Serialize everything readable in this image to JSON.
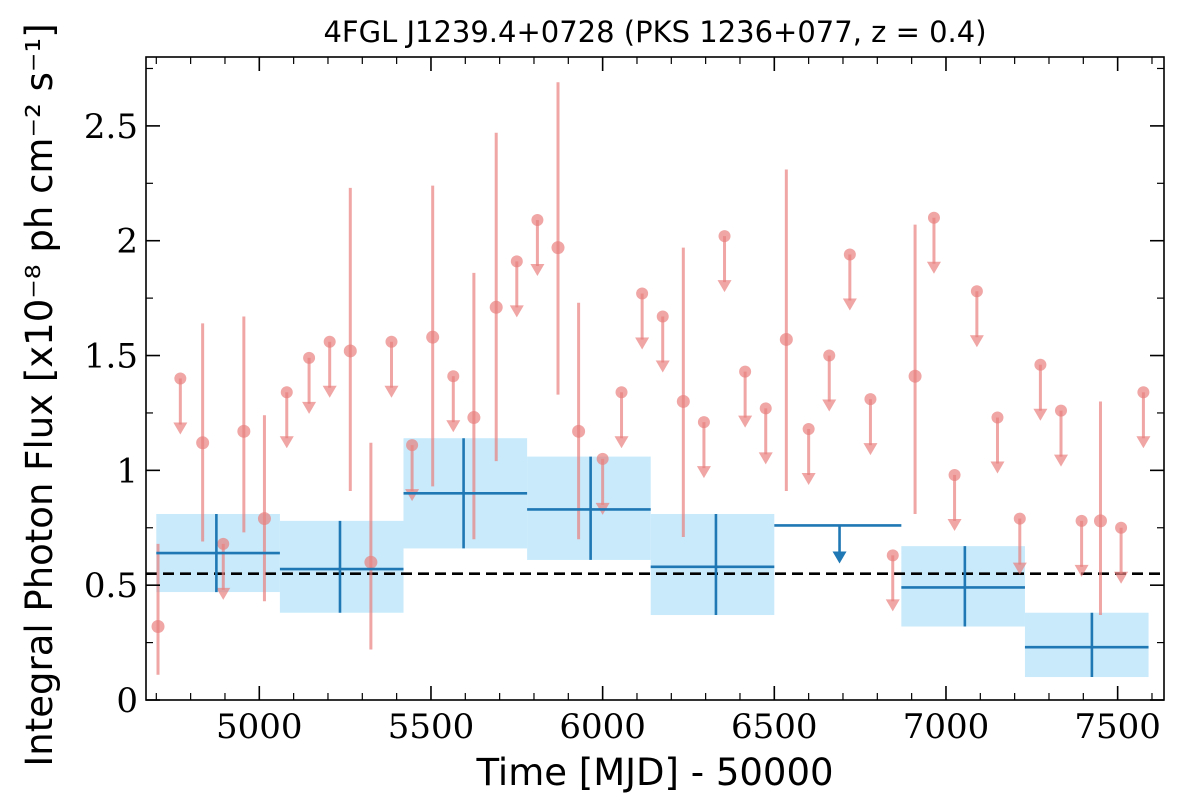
{
  "chart_data": {
    "type": "scatter",
    "title": "4FGL J1239.4+0728 (PKS 1236+077, z = 0.4)",
    "xlabel": "Time [MJD] - 50000",
    "ylabel": "Integral Photon Flux [x10⁻⁸ ph cm⁻² s⁻¹]",
    "xlim": [
      4670,
      7635
    ],
    "ylim": [
      0,
      2.8
    ],
    "xticks": [
      5000,
      5500,
      6000,
      6500,
      7000,
      7500
    ],
    "yticks": [
      0,
      0.5,
      1,
      1.5,
      2,
      2.5
    ],
    "xtick_labels": [
      "5000",
      "5500",
      "6000",
      "6500",
      "7000",
      "7500"
    ],
    "ytick_labels": [
      "0",
      "0.5",
      "1",
      "1.5",
      "2",
      "2.5"
    ],
    "reference_line": {
      "y": 0.55,
      "style": "dashed",
      "color": "#000000"
    },
    "colors": {
      "monthly": "#e8807f",
      "yearly": "#1f77b4",
      "yearly_band": "#c8eafb"
    },
    "series": [
      {
        "role": "monthly detections",
        "points": [
          {
            "x": 4705,
            "y": 0.32,
            "lo": 0.11,
            "hi": 0.68
          },
          {
            "x": 4835,
            "y": 1.12,
            "lo": 0.69,
            "hi": 1.64
          },
          {
            "x": 4955,
            "y": 1.17,
            "lo": 0.73,
            "hi": 1.67
          },
          {
            "x": 5015,
            "y": 0.79,
            "lo": 0.43,
            "hi": 1.24
          },
          {
            "x": 5265,
            "y": 1.52,
            "lo": 0.91,
            "hi": 2.23
          },
          {
            "x": 5325,
            "y": 0.6,
            "lo": 0.22,
            "hi": 1.12
          },
          {
            "x": 5505,
            "y": 1.58,
            "lo": 0.93,
            "hi": 2.24
          },
          {
            "x": 5625,
            "y": 1.23,
            "lo": 0.7,
            "hi": 1.86
          },
          {
            "x": 5690,
            "y": 1.71,
            "lo": 1.04,
            "hi": 2.47
          },
          {
            "x": 5870,
            "y": 1.97,
            "lo": 1.33,
            "hi": 2.69
          },
          {
            "x": 5930,
            "y": 1.17,
            "lo": 0.7,
            "hi": 1.73
          },
          {
            "x": 6235,
            "y": 1.3,
            "lo": 0.71,
            "hi": 1.97
          },
          {
            "x": 6535,
            "y": 1.57,
            "lo": 0.91,
            "hi": 2.31
          },
          {
            "x": 6910,
            "y": 1.41,
            "lo": 0.81,
            "hi": 2.07
          },
          {
            "x": 7450,
            "y": 0.78,
            "lo": 0.37,
            "hi": 1.3
          }
        ]
      },
      {
        "role": "monthly upper limits",
        "points": [
          {
            "x": 4770,
            "y": 1.4
          },
          {
            "x": 4895,
            "y": 0.68
          },
          {
            "x": 5080,
            "y": 1.34
          },
          {
            "x": 5145,
            "y": 1.49
          },
          {
            "x": 5205,
            "y": 1.56
          },
          {
            "x": 5385,
            "y": 1.56
          },
          {
            "x": 5445,
            "y": 1.11
          },
          {
            "x": 5565,
            "y": 1.41
          },
          {
            "x": 5750,
            "y": 1.91
          },
          {
            "x": 5810,
            "y": 2.09
          },
          {
            "x": 6000,
            "y": 1.05
          },
          {
            "x": 6055,
            "y": 1.34
          },
          {
            "x": 6115,
            "y": 1.77
          },
          {
            "x": 6175,
            "y": 1.67
          },
          {
            "x": 6295,
            "y": 1.21
          },
          {
            "x": 6355,
            "y": 2.02
          },
          {
            "x": 6415,
            "y": 1.43
          },
          {
            "x": 6475,
            "y": 1.27
          },
          {
            "x": 6600,
            "y": 1.18
          },
          {
            "x": 6660,
            "y": 1.5
          },
          {
            "x": 6720,
            "y": 1.94
          },
          {
            "x": 6780,
            "y": 1.31
          },
          {
            "x": 6845,
            "y": 0.63
          },
          {
            "x": 6965,
            "y": 2.1
          },
          {
            "x": 7025,
            "y": 0.98
          },
          {
            "x": 7090,
            "y": 1.78
          },
          {
            "x": 7150,
            "y": 1.23
          },
          {
            "x": 7215,
            "y": 0.79
          },
          {
            "x": 7275,
            "y": 1.46
          },
          {
            "x": 7335,
            "y": 1.26
          },
          {
            "x": 7395,
            "y": 0.78
          },
          {
            "x": 7510,
            "y": 0.75
          },
          {
            "x": 7575,
            "y": 1.34
          }
        ]
      },
      {
        "role": "yearly detections",
        "bins": [
          {
            "x0": 4700,
            "x1": 5060,
            "xc": 4875,
            "y": 0.64,
            "lo": 0.47,
            "hi": 0.81
          },
          {
            "x0": 5060,
            "x1": 5420,
            "xc": 5235,
            "y": 0.57,
            "lo": 0.38,
            "hi": 0.78
          },
          {
            "x0": 5420,
            "x1": 5780,
            "xc": 5595,
            "y": 0.9,
            "lo": 0.66,
            "hi": 1.14
          },
          {
            "x0": 5780,
            "x1": 6140,
            "xc": 5965,
            "y": 0.83,
            "lo": 0.61,
            "hi": 1.06
          },
          {
            "x0": 6140,
            "x1": 6500,
            "xc": 6330,
            "y": 0.58,
            "lo": 0.37,
            "hi": 0.81
          },
          {
            "x0": 6870,
            "x1": 7230,
            "xc": 7055,
            "y": 0.49,
            "lo": 0.32,
            "hi": 0.67
          },
          {
            "x0": 7230,
            "x1": 7590,
            "xc": 7425,
            "y": 0.23,
            "lo": 0.1,
            "hi": 0.38
          }
        ]
      },
      {
        "role": "yearly upper limits",
        "bins": [
          {
            "x0": 6500,
            "x1": 6870,
            "xc": 6690,
            "y": 0.76
          }
        ]
      }
    ]
  }
}
